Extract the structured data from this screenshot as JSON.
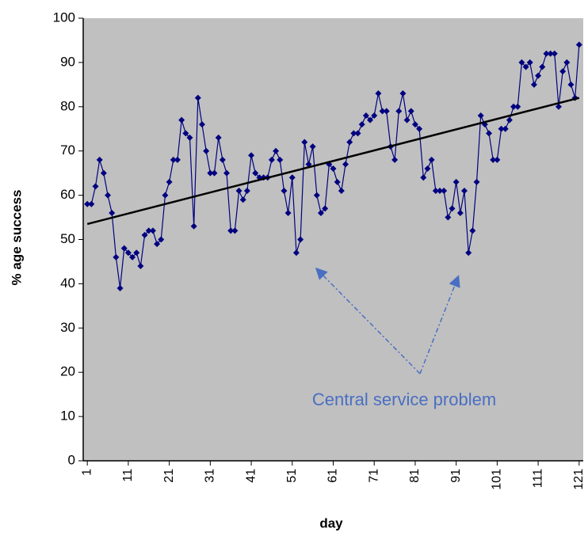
{
  "chart_data": {
    "type": "line",
    "x_label": "day",
    "y_label": "% age success",
    "annotation": "Central service problem",
    "x": [
      1,
      2,
      3,
      4,
      5,
      6,
      7,
      8,
      9,
      10,
      11,
      12,
      13,
      14,
      15,
      16,
      17,
      18,
      19,
      20,
      21,
      22,
      23,
      24,
      25,
      26,
      27,
      28,
      29,
      30,
      31,
      32,
      33,
      34,
      35,
      36,
      37,
      38,
      39,
      40,
      41,
      42,
      43,
      44,
      45,
      46,
      47,
      48,
      49,
      50,
      51,
      52,
      53,
      54,
      55,
      56,
      57,
      58,
      59,
      60,
      61,
      62,
      63,
      64,
      65,
      66,
      67,
      68,
      69,
      70,
      71,
      72,
      73,
      74,
      75,
      76,
      77,
      78,
      79,
      80,
      81,
      82,
      83,
      84,
      85,
      86,
      87,
      88,
      89,
      90,
      91,
      92,
      93,
      94,
      95,
      96,
      97,
      98,
      99,
      100,
      101,
      102,
      103,
      104,
      105,
      106,
      107,
      108,
      109,
      110,
      111,
      112,
      113,
      114,
      115,
      116,
      117,
      118,
      119,
      120,
      121
    ],
    "series": [
      {
        "color": "#000080",
        "values": [
          58,
          58,
          62,
          68,
          65,
          60,
          56,
          46,
          39,
          48,
          47,
          46,
          47,
          44,
          51,
          52,
          52,
          49,
          50,
          60,
          63,
          68,
          68,
          77,
          74,
          73,
          53,
          82,
          76,
          70,
          65,
          65,
          73,
          68,
          65,
          52,
          52,
          61,
          59,
          61,
          69,
          65,
          64,
          64,
          64,
          68,
          70,
          68,
          61,
          56,
          64,
          47,
          50,
          72,
          67,
          71,
          60,
          56,
          57,
          67,
          66,
          63,
          61,
          67,
          72,
          74,
          74,
          76,
          78,
          77,
          78,
          83,
          79,
          79,
          71,
          68,
          79,
          83,
          77,
          79,
          76,
          75,
          64,
          66,
          68,
          61,
          61,
          61,
          55,
          57,
          63,
          56,
          61,
          47,
          52,
          63,
          78,
          76,
          74,
          68,
          68,
          75,
          75,
          77,
          80,
          80,
          90,
          89,
          90,
          85,
          87,
          89,
          92,
          92,
          92,
          80,
          88,
          90,
          85,
          82,
          94
        ]
      }
    ],
    "trendline": {
      "x": [
        1,
        121
      ],
      "values": [
        53.5,
        82
      ],
      "color": "#000000"
    },
    "xlim": [
      0,
      122
    ],
    "xticks": [
      1,
      11,
      21,
      31,
      41,
      51,
      61,
      71,
      81,
      91,
      101,
      111,
      121
    ],
    "ylim": [
      0,
      100
    ],
    "yticks": [
      0,
      10,
      20,
      30,
      40,
      50,
      60,
      70,
      80,
      90,
      100
    ],
    "plot_color": "#c0c0c0",
    "grid": false
  }
}
